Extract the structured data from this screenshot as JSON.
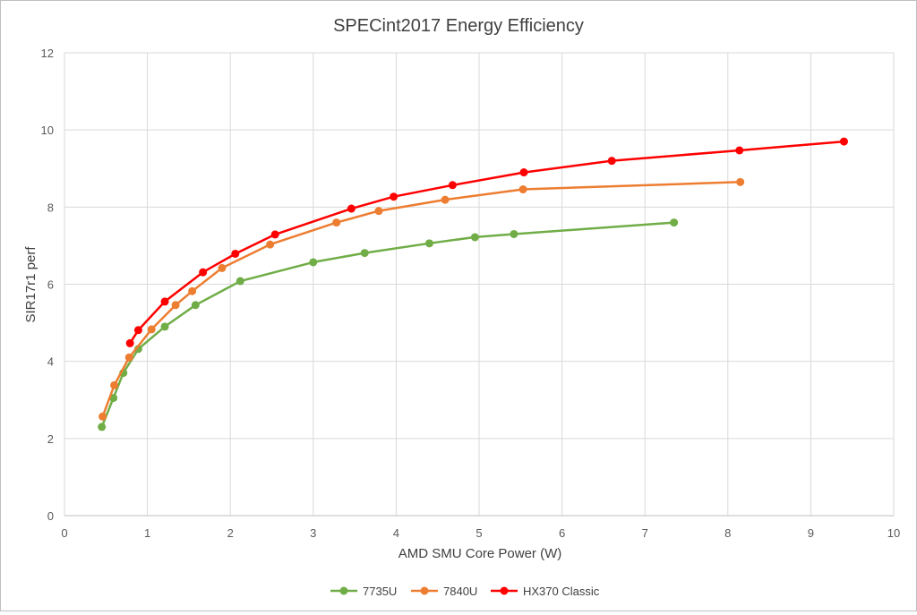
{
  "chart_data": {
    "type": "line",
    "title": "SPECint2017 Energy Efficiency",
    "xlabel": "AMD SMU Core Power (W)",
    "ylabel": "SIR17r1 perf",
    "xlim": [
      0,
      10
    ],
    "ylim": [
      0,
      12
    ],
    "xticks": [
      0,
      1,
      2,
      3,
      4,
      5,
      6,
      7,
      8,
      9,
      10
    ],
    "yticks": [
      0,
      2,
      4,
      6,
      8,
      10,
      12
    ],
    "grid": true,
    "legend_position": "bottom",
    "series": [
      {
        "name": "7735U",
        "color": "#70ad47",
        "x": [
          0.45,
          0.59,
          0.71,
          0.89,
          1.21,
          1.58,
          2.12,
          3.0,
          3.62,
          4.4,
          4.95,
          5.42,
          7.35
        ],
        "y": [
          2.3,
          3.05,
          3.7,
          4.32,
          4.9,
          5.46,
          6.08,
          6.57,
          6.81,
          7.06,
          7.22,
          7.3,
          7.6
        ]
      },
      {
        "name": "7840U",
        "color": "#ed7d31",
        "x": [
          0.46,
          0.6,
          0.78,
          1.05,
          1.34,
          1.54,
          1.9,
          2.48,
          3.28,
          3.79,
          4.59,
          5.53,
          8.15
        ],
        "y": [
          2.57,
          3.38,
          4.1,
          4.83,
          5.46,
          5.82,
          6.42,
          7.03,
          7.6,
          7.9,
          8.19,
          8.46,
          8.65
        ]
      },
      {
        "name": "HX370 Classic",
        "color": "#ff0000",
        "x": [
          0.79,
          0.89,
          1.21,
          1.67,
          2.06,
          2.54,
          3.46,
          3.97,
          4.68,
          5.54,
          6.6,
          8.14,
          9.4
        ],
        "y": [
          4.47,
          4.81,
          5.55,
          6.31,
          6.79,
          7.29,
          7.96,
          8.27,
          8.57,
          8.9,
          9.2,
          9.47,
          9.7
        ]
      }
    ]
  }
}
